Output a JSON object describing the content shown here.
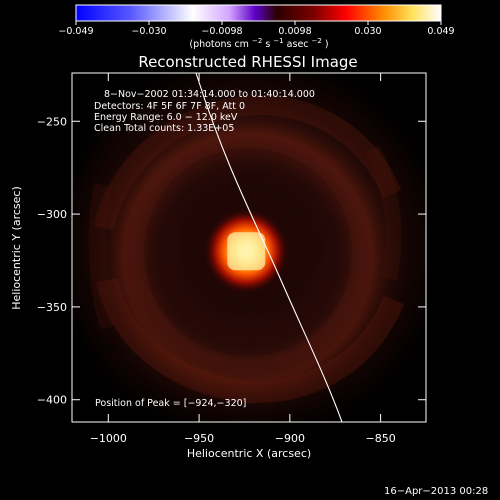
{
  "chart_data": {
    "type": "heatmap",
    "title": "Reconstructed RHESSI Image",
    "xlabel": "Heliocentric X (arcsec)",
    "ylabel": "Heliocentric Y (arcsec)",
    "xlim": [
      -1020,
      -825
    ],
    "ylim": [
      -412,
      -224
    ],
    "x_ticks": [
      -1000,
      -950,
      -900,
      -850
    ],
    "y_ticks": [
      -250,
      -300,
      -350,
      -400
    ],
    "colorbar": {
      "min": -0.049,
      "max": 0.049,
      "tick_labels": [
        "−0.049",
        "−0.030",
        "−0.0098",
        "0.0098",
        "0.030",
        "0.049"
      ],
      "unit_parts": [
        "(photons cm",
        "−2",
        " s",
        "−1",
        " asec",
        "−2",
        ")"
      ]
    },
    "annotations": {
      "time_range": "8−Nov−2002 01:34:14.000 to 01:40:14.000",
      "detectors": "Detectors: 4F 5F 6F 7F 8F, Att 0",
      "energy_range": "Energy Range: 6.0 − 12.0 keV",
      "clean_counts": "Clean     Total counts: 1.33E+05",
      "peak_position": "Position of Peak = [−924,−320]"
    },
    "footer_date": "16−Apr−2013 00:28",
    "peak": {
      "x": -924,
      "y": -320,
      "value": 0.049
    },
    "colors": {
      "background": "#000000",
      "axes": "#ffffff",
      "limb_line": "#ffffff",
      "colormap": [
        "#0000ff",
        "#ffffff",
        "#d7a6ff",
        "#2b0000",
        "#ff4400",
        "#ffe36a",
        "#ffffff"
      ]
    }
  }
}
